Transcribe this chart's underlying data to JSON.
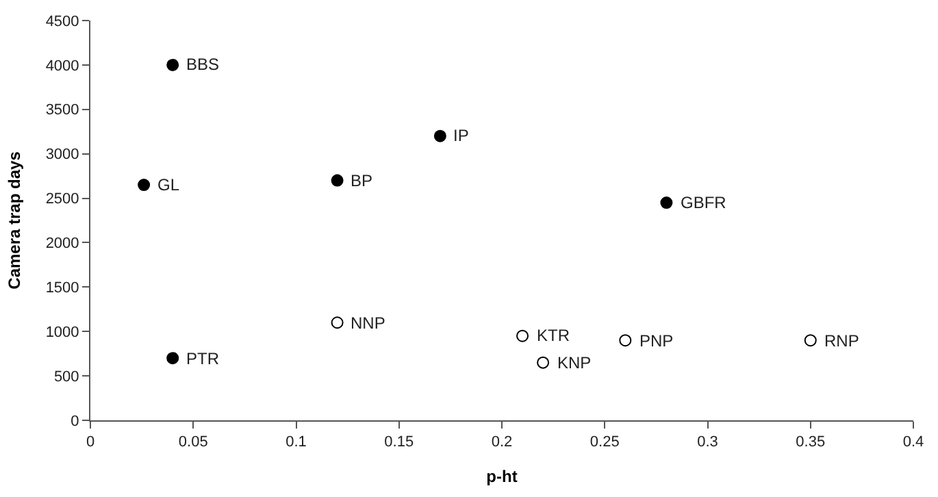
{
  "chart_data": {
    "type": "scatter",
    "xlabel": "p-ht",
    "ylabel": "Camera trap days",
    "series": [
      {
        "color": "#000000",
        "x": [
          0.04,
          0.026,
          0.12,
          0.17,
          0.04,
          0.28
        ],
        "values": [
          4000,
          2650,
          2700,
          3200,
          700,
          2450
        ]
      },
      {
        "color": "#ffffff",
        "x": [
          0.12,
          0.21,
          0.22,
          0.26,
          0.35
        ],
        "values": [
          1100,
          950,
          650,
          900,
          900
        ]
      }
    ],
    "annotations": [
      {
        "text": "BBS",
        "x": 0.04,
        "y": 4000
      },
      {
        "text": "GL",
        "x": 0.026,
        "y": 2650
      },
      {
        "text": "BP",
        "x": 0.12,
        "y": 2700
      },
      {
        "text": "IP",
        "x": 0.17,
        "y": 3200
      },
      {
        "text": "PTR",
        "x": 0.04,
        "y": 700
      },
      {
        "text": "GBFR",
        "x": 0.28,
        "y": 2450
      },
      {
        "text": "NNP",
        "x": 0.12,
        "y": 1100
      },
      {
        "text": "KTR",
        "x": 0.21,
        "y": 950
      },
      {
        "text": "KNP",
        "x": 0.22,
        "y": 650
      },
      {
        "text": "PNP",
        "x": 0.26,
        "y": 900
      },
      {
        "text": "RNP",
        "x": 0.35,
        "y": 900
      }
    ],
    "xlim": [
      0,
      0.4
    ],
    "xticks": [
      0,
      0.05,
      0.1,
      0.15,
      0.2,
      0.25,
      0.3,
      0.35,
      0.4
    ],
    "ylim": [
      0,
      4500
    ],
    "yticks": [
      0,
      500,
      1000,
      1500,
      2000,
      2500,
      3000,
      3500,
      4000,
      4500
    ],
    "tick_labels": "xy"
  }
}
